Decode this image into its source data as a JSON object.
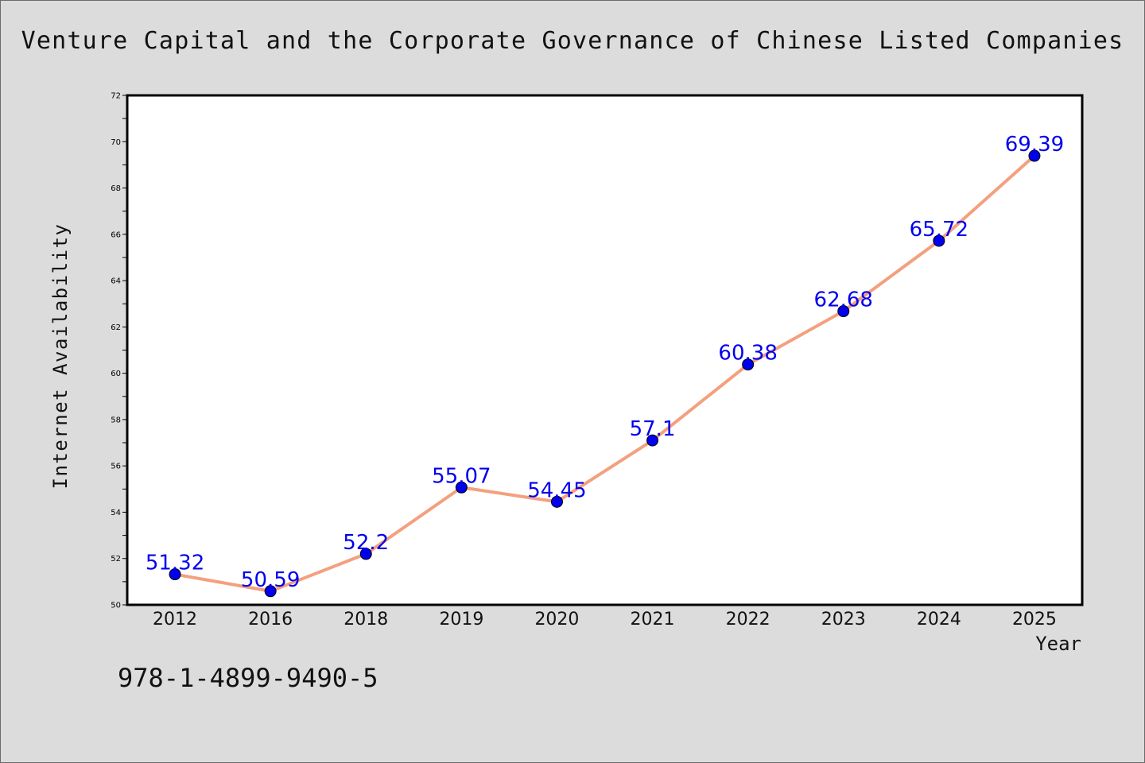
{
  "chart_data": {
    "type": "line",
    "title": "Venture Capital and the Corporate Governance of Chinese Listed Companies",
    "xlabel": "Year",
    "ylabel": "Internet Availability",
    "categories": [
      "2012",
      "2016",
      "2018",
      "2019",
      "2020",
      "2021",
      "2022",
      "2023",
      "2024",
      "2025"
    ],
    "series": [
      {
        "values": [
          51.32,
          50.59,
          52.2,
          55.07,
          54.45,
          57.1,
          60.38,
          62.68,
          65.72,
          69.39
        ]
      }
    ],
    "data_labels": [
      "51.32",
      "50.59",
      "52.2",
      "55.07",
      "54.45",
      "57.1",
      "60.38",
      "62.68",
      "65.72",
      "69.39"
    ],
    "ylim": [
      50,
      72
    ],
    "yticks": [
      50,
      52,
      54,
      56,
      58,
      60,
      62,
      64,
      66,
      68,
      70,
      72
    ],
    "grid": false,
    "line_color": "#f4a07e",
    "marker_color": "#0000ee",
    "label_color": "#0000ee",
    "background_color": "#dcdcdc",
    "plot_background": "#ffffff"
  },
  "footer": {
    "isbn": "978-1-4899-9490-5"
  }
}
